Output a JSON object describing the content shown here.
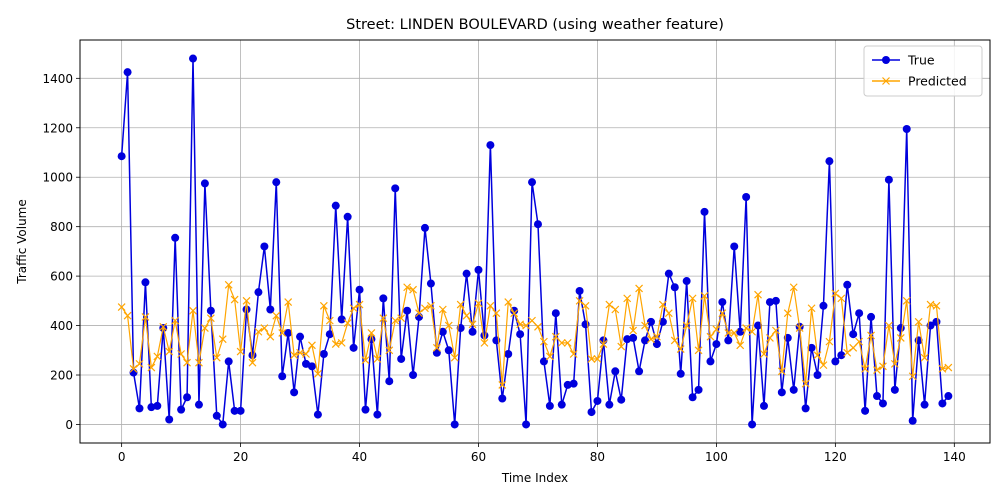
{
  "chart_data": {
    "type": "line",
    "title": "Street: LINDEN BOULEVARD (using weather feature)",
    "xlabel": "Time Index",
    "ylabel": "Traffic Volume",
    "xlim": [
      -7,
      146
    ],
    "ylim": [
      -75,
      1555
    ],
    "xticks": [
      0,
      20,
      40,
      60,
      80,
      100,
      120,
      140
    ],
    "yticks": [
      0,
      200,
      400,
      600,
      800,
      1000,
      1200,
      1400
    ],
    "grid": true,
    "legend_position": "top-right",
    "series": [
      {
        "name": "True",
        "color": "#0000dd",
        "marker": "circle",
        "values": [
          1085,
          1425,
          210,
          65,
          575,
          70,
          75,
          390,
          20,
          755,
          60,
          110,
          1480,
          80,
          975,
          460,
          35,
          0,
          255,
          55,
          55,
          465,
          280,
          535,
          720,
          465,
          980,
          195,
          370,
          130,
          355,
          245,
          235,
          40,
          285,
          365,
          885,
          425,
          840,
          310,
          545,
          60,
          345,
          40,
          510,
          175,
          955,
          265,
          460,
          200,
          435,
          795,
          570,
          290,
          375,
          300,
          0,
          390,
          610,
          375,
          625,
          360,
          1130,
          340,
          105,
          285,
          460,
          365,
          0,
          980,
          810,
          255,
          75,
          450,
          80,
          160,
          165,
          540,
          405,
          50,
          95,
          340,
          80,
          215,
          100,
          345,
          350,
          215,
          340,
          415,
          325,
          415,
          610,
          555,
          205,
          580,
          110,
          140,
          860,
          255,
          325,
          495,
          340,
          720,
          375,
          920,
          0,
          400,
          75,
          495,
          500,
          130,
          350,
          140,
          395,
          65,
          310,
          200,
          480,
          1065,
          255,
          280,
          565,
          365,
          450,
          55,
          435,
          115,
          85,
          990,
          140,
          390,
          1195,
          15,
          340,
          80,
          400,
          415,
          85,
          115
        ]
      },
      {
        "name": "Predicted",
        "color": "#ffa500",
        "marker": "x",
        "values": [
          475,
          440,
          225,
          245,
          435,
          230,
          275,
          395,
          295,
          420,
          285,
          250,
          460,
          250,
          390,
          430,
          270,
          345,
          565,
          505,
          295,
          500,
          250,
          375,
          390,
          355,
          440,
          370,
          495,
          280,
          290,
          285,
          320,
          205,
          480,
          420,
          325,
          330,
          410,
          470,
          485,
          260,
          370,
          265,
          430,
          300,
          420,
          430,
          555,
          545,
          450,
          470,
          480,
          310,
          465,
          400,
          270,
          485,
          440,
          405,
          490,
          330,
          480,
          450,
          160,
          495,
          450,
          405,
          400,
          420,
          395,
          335,
          275,
          355,
          330,
          330,
          285,
          500,
          480,
          265,
          265,
          325,
          485,
          465,
          315,
          510,
          380,
          550,
          400,
          345,
          355,
          485,
          450,
          340,
          305,
          400,
          510,
          300,
          520,
          355,
          385,
          450,
          370,
          370,
          320,
          390,
          375,
          525,
          285,
          350,
          380,
          215,
          450,
          555,
          390,
          165,
          470,
          280,
          240,
          335,
          530,
          510,
          290,
          310,
          335,
          225,
          360,
          220,
          235,
          400,
          245,
          350,
          500,
          195,
          415,
          270,
          485,
          480,
          225,
          230
        ]
      }
    ]
  }
}
